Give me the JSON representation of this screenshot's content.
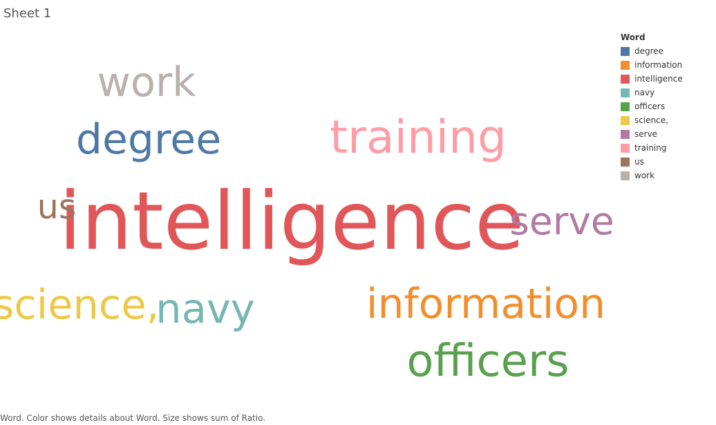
{
  "sheet": {
    "title": "Sheet 1"
  },
  "chart_data": {
    "type": "word_cloud",
    "encoding": {
      "color": "Word",
      "size": "sum of Ratio"
    },
    "words": [
      {
        "word": "intelligence",
        "color": "#e15759",
        "relative_size": 1.0
      },
      {
        "word": "training",
        "color": "#ff9da7",
        "relative_size": 0.57
      },
      {
        "word": "officers",
        "color": "#59a14f",
        "relative_size": 0.55
      },
      {
        "word": "information",
        "color": "#f28e2b",
        "relative_size": 0.52
      },
      {
        "word": "degree",
        "color": "#4e79a7",
        "relative_size": 0.52
      },
      {
        "word": "work",
        "color": "#bab0ac",
        "relative_size": 0.51
      },
      {
        "word": "navy",
        "color": "#76b7b2",
        "relative_size": 0.51
      },
      {
        "word": "science,",
        "color": "#edc948",
        "relative_size": 0.51
      },
      {
        "word": "serve",
        "color": "#b07aa1",
        "relative_size": 0.47
      },
      {
        "word": "us",
        "color": "#9c755f",
        "relative_size": 0.42
      }
    ]
  },
  "legend": {
    "title": "Word",
    "items": [
      {
        "label": "degree",
        "color": "#4e79a7"
      },
      {
        "label": "information",
        "color": "#f28e2b"
      },
      {
        "label": "intelligence",
        "color": "#e15759"
      },
      {
        "label": "navy",
        "color": "#76b7b2"
      },
      {
        "label": "officers",
        "color": "#59a14f"
      },
      {
        "label": "science,",
        "color": "#edc948"
      },
      {
        "label": "serve",
        "color": "#b07aa1"
      },
      {
        "label": "training",
        "color": "#ff9da7"
      },
      {
        "label": "us",
        "color": "#9c755f"
      },
      {
        "label": "work",
        "color": "#bab0ac"
      }
    ],
    "placement": "top-right"
  },
  "caption": {
    "text": "Word.  Color shows details about Word.  Size shows sum of Ratio."
  }
}
